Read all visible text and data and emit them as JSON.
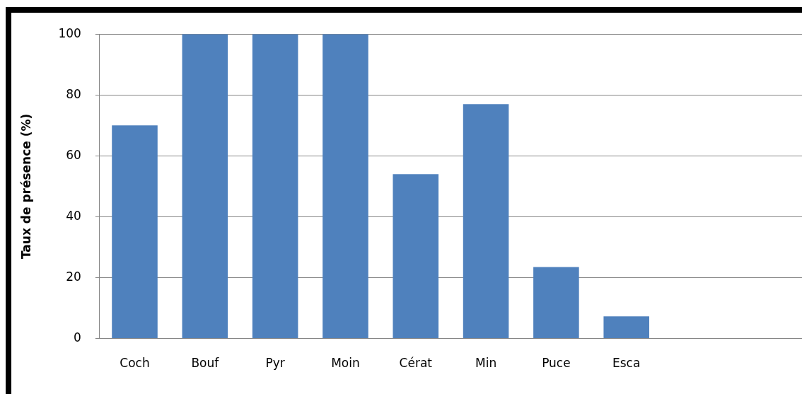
{
  "chart_data": {
    "type": "bar",
    "ylabel": "Taux de présence (%)",
    "categories": [
      "Coch",
      "Bouf",
      "Pyr",
      "Moin",
      "Cérat",
      "Min",
      "Puce",
      "Esca",
      null,
      null
    ],
    "values": [
      70,
      100,
      100,
      100,
      54,
      77,
      23.5,
      7.3,
      null,
      null
    ],
    "color": "#4f81bd",
    "ylim": [
      0,
      100
    ],
    "yticks": [
      0,
      20,
      40,
      60,
      80,
      100
    ],
    "grid": "y",
    "legend": false
  }
}
